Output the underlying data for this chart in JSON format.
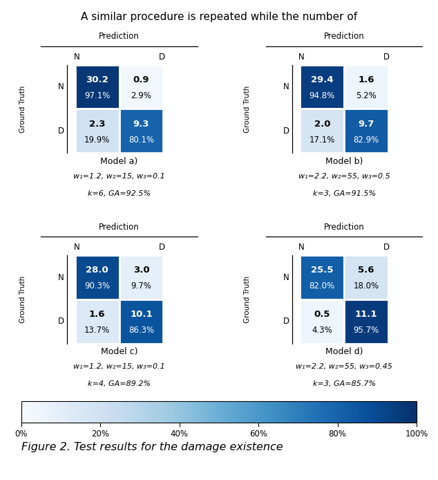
{
  "models": [
    {
      "name": "Model a)",
      "params": "w₁=1.2, w₂=15, w₃=0.1",
      "params2": "k=6, GA=92.5%",
      "matrix": [
        [
          30.2,
          0.9
        ],
        [
          2.3,
          9.3
        ]
      ],
      "pct": [
        [
          "97.1%",
          "2.9%"
        ],
        [
          "19.9%",
          "80.1%"
        ]
      ]
    },
    {
      "name": "Model b)",
      "params": "w₁=2.2, w₂=55, w₃=0.5",
      "params2": "k=3, GA=91.5%",
      "matrix": [
        [
          29.4,
          1.6
        ],
        [
          2.0,
          9.7
        ]
      ],
      "pct": [
        [
          "94.8%",
          "5.2%"
        ],
        [
          "17.1%",
          "82.9%"
        ]
      ]
    },
    {
      "name": "Model c)",
      "params": "w₁=1.2, w₂=15, w₃=0.1",
      "params2": "k=4, GA=89.2%",
      "matrix": [
        [
          28.0,
          3.0
        ],
        [
          1.6,
          10.1
        ]
      ],
      "pct": [
        [
          "90.3%",
          "9.7%"
        ],
        [
          "13.7%",
          "86.3%"
        ]
      ]
    },
    {
      "name": "Model d)",
      "params": "w₁=2.2, w₂=55, w₃=0.45",
      "params2": "k=3, GA=85.7%",
      "matrix": [
        [
          25.5,
          5.6
        ],
        [
          0.5,
          11.1
        ]
      ],
      "pct": [
        [
          "82.0%",
          "18.0%"
        ],
        [
          "4.3%",
          "95.7%"
        ]
      ]
    }
  ],
  "colormap": "Blues",
  "vmin": 0,
  "vmax": 100,
  "figure_caption": "Figure 2. Test results for the damage existence",
  "colorbar_ticks": [
    0,
    20,
    40,
    60,
    80,
    100
  ],
  "colorbar_labels": [
    "0%",
    "20%",
    "40%",
    "60%",
    "80%",
    "100%"
  ],
  "top_text": "A similar procedure is repeated while the number of",
  "threshold": 50
}
